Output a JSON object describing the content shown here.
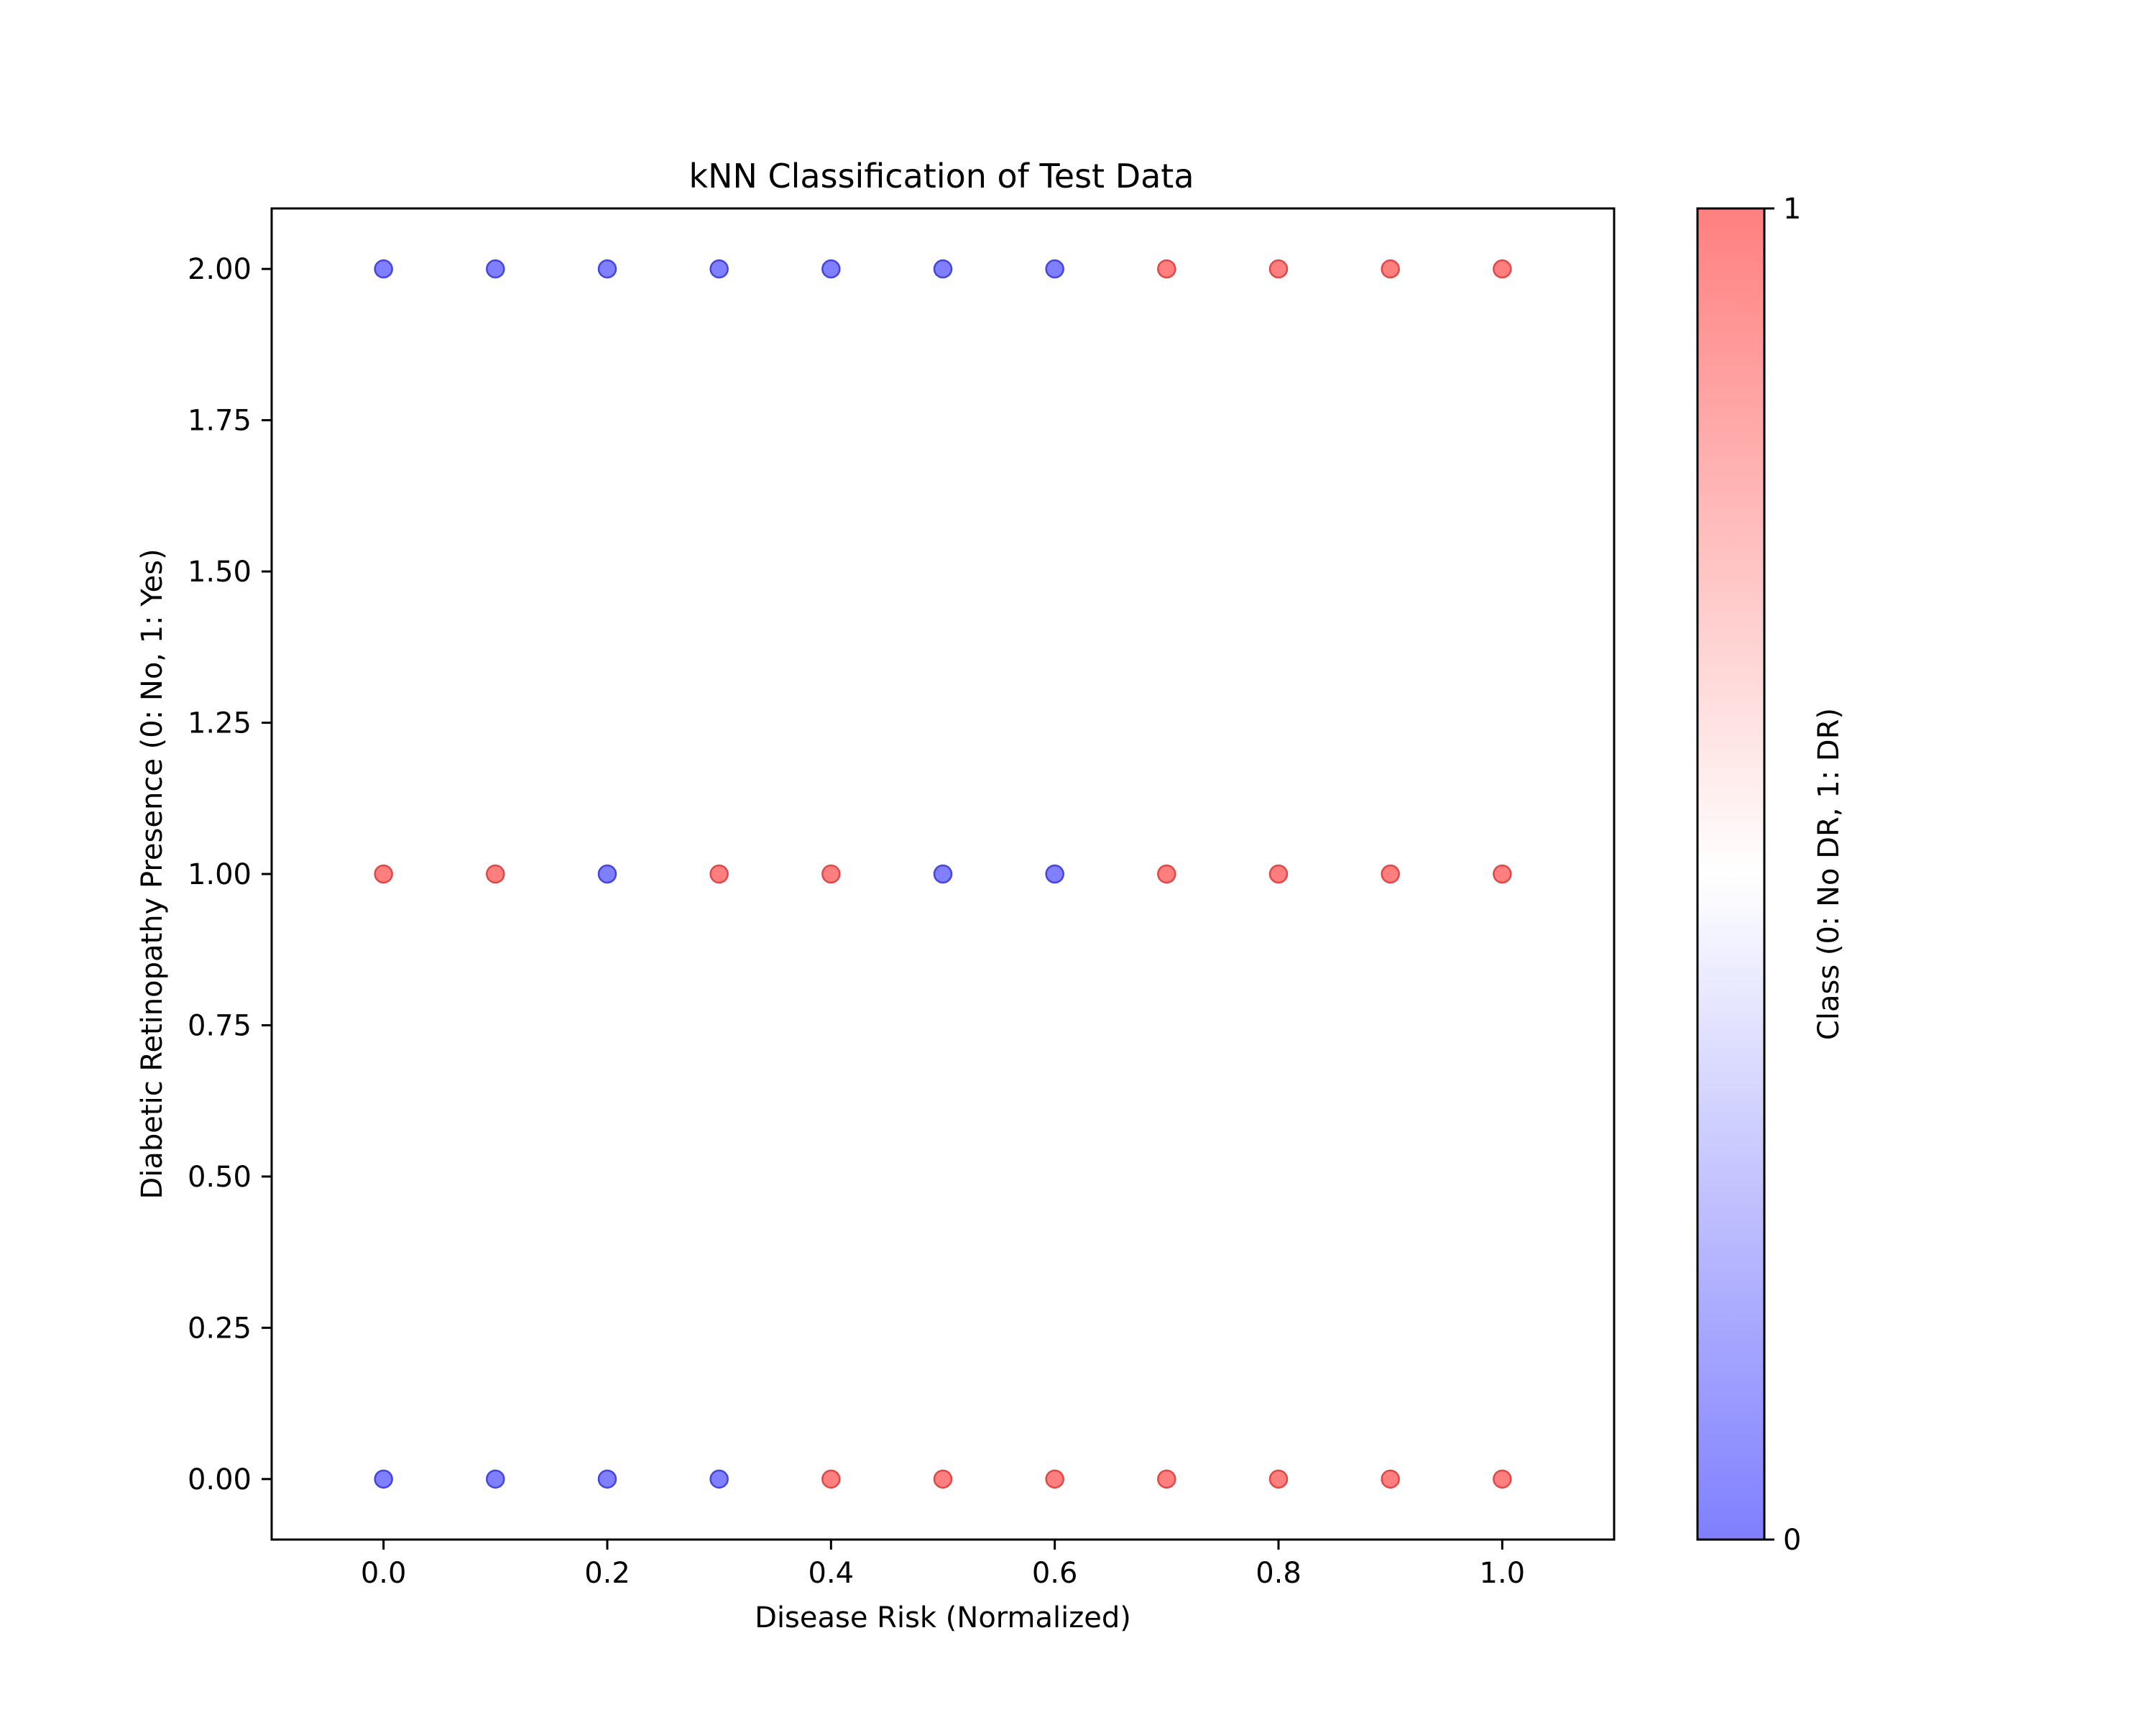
{
  "chart_data": {
    "type": "scatter",
    "title": "kNN Classification of Test Data",
    "xlabel": "Disease Risk (Normalized)",
    "ylabel": "Diabetic Retinopathy Presence (0: No, 1: Yes)",
    "xlim": [
      -0.1,
      1.1
    ],
    "ylim": [
      -0.1,
      2.1
    ],
    "xticks": [
      "0.0",
      "0.2",
      "0.4",
      "0.6",
      "0.8",
      "1.0"
    ],
    "xtick_values": [
      0.0,
      0.2,
      0.4,
      0.6,
      0.8,
      1.0
    ],
    "yticks": [
      "0.00",
      "0.25",
      "0.50",
      "0.75",
      "1.00",
      "1.25",
      "1.50",
      "1.75",
      "2.00"
    ],
    "ytick_values": [
      0.0,
      0.25,
      0.5,
      0.75,
      1.0,
      1.25,
      1.5,
      1.75,
      2.0
    ],
    "grid": false,
    "colorbar": {
      "label": "Class (0: No DR, 1: DR)",
      "ticks": [
        "0",
        "1"
      ],
      "range": [
        0,
        1
      ],
      "color_low": "#7f7fff",
      "color_mid": "#ffffff",
      "color_high": "#ff7f7f"
    },
    "colors": {
      "class_0": "#7f7fff",
      "class_1": "#ff7f7f",
      "class_0_edge": "#4444e0",
      "class_1_edge": "#e04848"
    },
    "points": [
      {
        "x": 0.0,
        "y": 2,
        "cls": 0
      },
      {
        "x": 0.1,
        "y": 2,
        "cls": 0
      },
      {
        "x": 0.2,
        "y": 2,
        "cls": 0
      },
      {
        "x": 0.3,
        "y": 2,
        "cls": 0
      },
      {
        "x": 0.4,
        "y": 2,
        "cls": 0
      },
      {
        "x": 0.5,
        "y": 2,
        "cls": 0
      },
      {
        "x": 0.6,
        "y": 2,
        "cls": 0
      },
      {
        "x": 0.7,
        "y": 2,
        "cls": 1
      },
      {
        "x": 0.8,
        "y": 2,
        "cls": 1
      },
      {
        "x": 0.9,
        "y": 2,
        "cls": 1
      },
      {
        "x": 1.0,
        "y": 2,
        "cls": 1
      },
      {
        "x": 0.0,
        "y": 1,
        "cls": 1
      },
      {
        "x": 0.1,
        "y": 1,
        "cls": 1
      },
      {
        "x": 0.2,
        "y": 1,
        "cls": 0
      },
      {
        "x": 0.3,
        "y": 1,
        "cls": 1
      },
      {
        "x": 0.4,
        "y": 1,
        "cls": 1
      },
      {
        "x": 0.5,
        "y": 1,
        "cls": 0
      },
      {
        "x": 0.6,
        "y": 1,
        "cls": 0
      },
      {
        "x": 0.7,
        "y": 1,
        "cls": 1
      },
      {
        "x": 0.8,
        "y": 1,
        "cls": 1
      },
      {
        "x": 0.9,
        "y": 1,
        "cls": 1
      },
      {
        "x": 1.0,
        "y": 1,
        "cls": 1
      },
      {
        "x": 0.0,
        "y": 0,
        "cls": 0
      },
      {
        "x": 0.1,
        "y": 0,
        "cls": 0
      },
      {
        "x": 0.2,
        "y": 0,
        "cls": 0
      },
      {
        "x": 0.3,
        "y": 0,
        "cls": 0
      },
      {
        "x": 0.4,
        "y": 0,
        "cls": 1
      },
      {
        "x": 0.5,
        "y": 0,
        "cls": 1
      },
      {
        "x": 0.6,
        "y": 0,
        "cls": 1
      },
      {
        "x": 0.7,
        "y": 0,
        "cls": 1
      },
      {
        "x": 0.8,
        "y": 0,
        "cls": 1
      },
      {
        "x": 0.9,
        "y": 0,
        "cls": 1
      },
      {
        "x": 1.0,
        "y": 0,
        "cls": 1
      }
    ]
  }
}
